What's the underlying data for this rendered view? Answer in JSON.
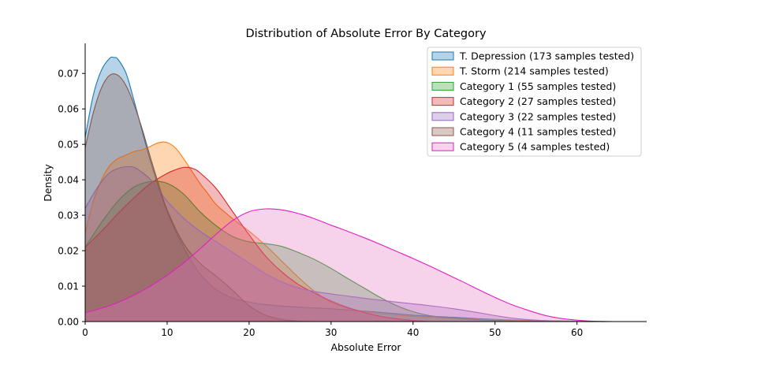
{
  "chart_data": {
    "type": "area",
    "title": "Distribution of Absolute Error By Category",
    "xlabel": "Absolute Error",
    "ylabel": "Density",
    "xlim": [
      0,
      68.5
    ],
    "ylim": [
      0,
      0.0785
    ],
    "xticks": [
      0,
      10,
      20,
      30,
      40,
      50,
      60
    ],
    "yticks": [
      0.0,
      0.01,
      0.02,
      0.03,
      0.04,
      0.05,
      0.06,
      0.07
    ],
    "ytick_labels": [
      "0.00",
      "0.01",
      "0.02",
      "0.03",
      "0.04",
      "0.05",
      "0.06",
      "0.07"
    ],
    "grid": false,
    "legend_position": "top-right",
    "series": [
      {
        "name": "T. Depression (173 samples tested)",
        "color": "#1f77b4",
        "x": [
          0,
          1,
          2,
          3,
          3.5,
          4,
          5,
          6,
          8,
          10,
          12,
          14,
          16,
          18,
          20,
          22,
          25,
          30,
          35,
          40,
          45,
          50,
          55,
          60,
          64
        ],
        "y": [
          0.052,
          0.064,
          0.071,
          0.0743,
          0.0745,
          0.074,
          0.07,
          0.062,
          0.045,
          0.031,
          0.021,
          0.0135,
          0.009,
          0.0066,
          0.0055,
          0.0048,
          0.0042,
          0.0036,
          0.0028,
          0.0018,
          0.0012,
          0.0006,
          0.0003,
          0.0001,
          0.0
        ]
      },
      {
        "name": "T. Storm (214 samples tested)",
        "color": "#ff7f0e",
        "x": [
          0,
          1,
          2,
          3,
          4,
          5,
          6,
          7,
          8,
          9,
          10,
          11,
          12,
          13,
          14,
          15,
          16,
          18,
          20,
          22,
          24,
          26,
          28,
          30,
          32,
          35,
          38,
          42,
          46,
          50,
          55,
          60,
          64
        ],
        "y": [
          0.025,
          0.034,
          0.04,
          0.044,
          0.046,
          0.047,
          0.048,
          0.0485,
          0.0495,
          0.0505,
          0.0505,
          0.049,
          0.046,
          0.0425,
          0.039,
          0.036,
          0.033,
          0.029,
          0.0255,
          0.0215,
          0.017,
          0.0125,
          0.0085,
          0.0055,
          0.0038,
          0.0025,
          0.0018,
          0.0012,
          0.0008,
          0.0005,
          0.0002,
          0.0001,
          0.0
        ]
      },
      {
        "name": "Category 1 (55 samples tested)",
        "color": "#2ca02c",
        "x": [
          0,
          2,
          4,
          6,
          8,
          10,
          12,
          14,
          16,
          18,
          20,
          22,
          24,
          26,
          28,
          30,
          32,
          34,
          36,
          38,
          40,
          42,
          45,
          48,
          52,
          56,
          60,
          64
        ],
        "y": [
          0.021,
          0.028,
          0.034,
          0.038,
          0.0395,
          0.039,
          0.036,
          0.031,
          0.027,
          0.024,
          0.0225,
          0.022,
          0.0212,
          0.0195,
          0.0175,
          0.015,
          0.0122,
          0.0095,
          0.0068,
          0.0045,
          0.0028,
          0.0017,
          0.0009,
          0.0005,
          0.0002,
          0.0001,
          0.0,
          0.0
        ]
      },
      {
        "name": "Category 2 (27 samples tested)",
        "color": "#d62728",
        "x": [
          0,
          2,
          4,
          6,
          8,
          10,
          11,
          12,
          13,
          14,
          16,
          18,
          20,
          22,
          24,
          26,
          28,
          30,
          32,
          34,
          36,
          38,
          40,
          42
        ],
        "y": [
          0.021,
          0.0255,
          0.0305,
          0.035,
          0.039,
          0.0418,
          0.0428,
          0.0435,
          0.0433,
          0.042,
          0.0375,
          0.031,
          0.0245,
          0.0185,
          0.014,
          0.0105,
          0.008,
          0.0058,
          0.004,
          0.0026,
          0.0015,
          0.0008,
          0.0003,
          0.0
        ]
      },
      {
        "name": "Category 3 (22 samples tested)",
        "color": "#9467bd",
        "x": [
          0,
          1,
          2,
          3,
          4,
          5,
          6,
          7,
          8,
          9,
          10,
          12,
          14,
          16,
          18,
          20,
          22,
          24,
          26,
          28,
          30,
          32,
          35,
          38,
          40,
          42,
          45,
          48,
          50,
          52,
          55,
          58,
          60
        ],
        "y": [
          0.032,
          0.036,
          0.0395,
          0.042,
          0.0432,
          0.0437,
          0.0435,
          0.042,
          0.04,
          0.037,
          0.034,
          0.0292,
          0.0255,
          0.0225,
          0.0195,
          0.0165,
          0.0135,
          0.0112,
          0.0095,
          0.0085,
          0.0078,
          0.0072,
          0.0063,
          0.0055,
          0.005,
          0.0045,
          0.0036,
          0.0025,
          0.0017,
          0.001,
          0.0004,
          0.0001,
          0.0
        ]
      },
      {
        "name": "Category 4 (11 samples tested)",
        "color": "#8c564b",
        "x": [
          0,
          1,
          2,
          3,
          4,
          5,
          6,
          7,
          8,
          9,
          10,
          12,
          14,
          16,
          18,
          20,
          22,
          24,
          26,
          28
        ],
        "y": [
          0.049,
          0.059,
          0.066,
          0.0695,
          0.0695,
          0.0665,
          0.061,
          0.054,
          0.046,
          0.0385,
          0.0315,
          0.022,
          0.0165,
          0.0128,
          0.0088,
          0.0045,
          0.0018,
          0.0006,
          0.0001,
          0.0
        ]
      },
      {
        "name": "Category 5 (4 samples tested)",
        "color": "#e377c2",
        "stroke": "#e020c0",
        "x": [
          0,
          3,
          6,
          9,
          12,
          14,
          16,
          18,
          20,
          22,
          24,
          26,
          28,
          30,
          32,
          34,
          36,
          38,
          40,
          42,
          44,
          46,
          48,
          50,
          52,
          54,
          56,
          58,
          60,
          62,
          64.5
        ],
        "y": [
          0.0025,
          0.0045,
          0.0075,
          0.0115,
          0.0165,
          0.0205,
          0.0247,
          0.0285,
          0.031,
          0.0318,
          0.0315,
          0.0305,
          0.029,
          0.0272,
          0.0255,
          0.0237,
          0.0218,
          0.0198,
          0.0178,
          0.0157,
          0.0135,
          0.0113,
          0.009,
          0.0068,
          0.0048,
          0.0032,
          0.0018,
          0.0009,
          0.0004,
          0.0001,
          0.0
        ]
      }
    ]
  }
}
